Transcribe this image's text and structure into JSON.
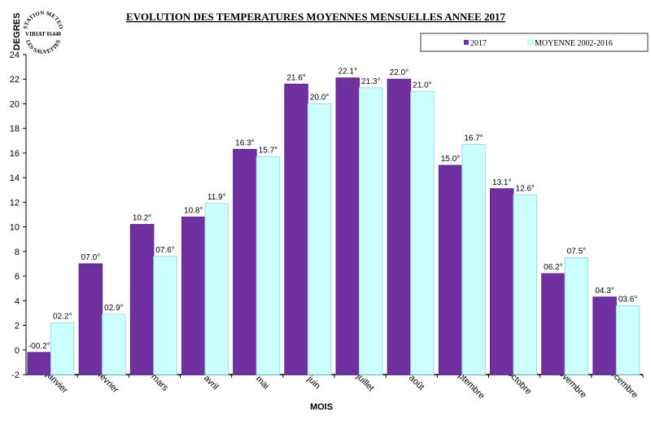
{
  "chart_data": {
    "type": "bar",
    "title": "EVOLUTION DES TEMPERATURES MOYENNES MENSUELLES ANNEE 2017",
    "xlabel": "MOIS",
    "ylabel": "DEGRES",
    "ylim": [
      -2,
      24
    ],
    "yticks": [
      -2,
      0,
      2,
      4,
      6,
      8,
      10,
      12,
      14,
      16,
      18,
      20,
      22,
      24
    ],
    "grid": false,
    "legend_position": "top-right",
    "categories": [
      "janvier",
      "février",
      "mars",
      "avril",
      "mai",
      "juin",
      "juillet",
      "août",
      "septembre",
      "octobre",
      "novembre",
      "décembre"
    ],
    "series": [
      {
        "name": "2017",
        "color": "#7030a0",
        "values": [
          -0.2,
          7.0,
          10.2,
          10.8,
          16.3,
          21.6,
          22.1,
          22.0,
          15.0,
          13.1,
          6.2,
          4.3
        ],
        "labels": [
          "-00.2°",
          "07.0°",
          "10.2°",
          "10.8°",
          "16.3°",
          "21.6°",
          "22.1°",
          "22.0°",
          "15.0°",
          "13.1°",
          "06.2°",
          "04.3°"
        ]
      },
      {
        "name": "MOYENNE 2002-2016",
        "color": "#ccffff",
        "values": [
          2.2,
          2.9,
          7.6,
          11.9,
          15.7,
          20.0,
          21.3,
          21.0,
          16.7,
          12.6,
          7.5,
          3.6
        ],
        "labels": [
          "02.2°",
          "02.9°",
          "07.6°",
          "11.9°",
          "15.7°",
          "20.0°",
          "21.3°",
          "21.0°",
          "16.7°",
          "12.6°",
          "07.5°",
          "03.6°"
        ]
      }
    ]
  },
  "stamp": {
    "line1": "STATION METEO",
    "line2": "VIRIAT 01440",
    "line3": "LES SAUVETTES"
  }
}
